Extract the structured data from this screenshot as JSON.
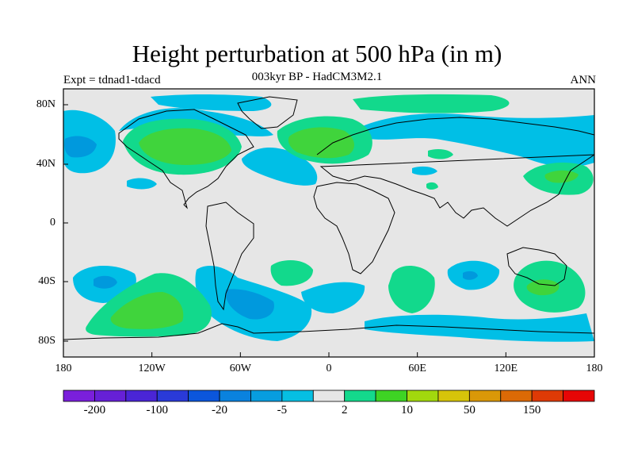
{
  "title": "Height perturbation at 500 hPa (in m)",
  "subtitle": "003kyr BP - HadCM3M2.1",
  "expt_label": "Expt = tdnad1-tdacd",
  "season_label": "ANN",
  "x_ticks": [
    "180",
    "120W",
    "60W",
    "0",
    "60E",
    "120E",
    "180"
  ],
  "y_ticks": [
    "80N",
    "40N",
    "0",
    "40S",
    "80S"
  ],
  "colors": {
    "background_land_ocean": "#e6e6e6",
    "light_blue": "#00bfe6",
    "mid_blue": "#0099dd",
    "light_green": "#12d98c",
    "green": "#40d43c"
  },
  "colorbar": {
    "colors": [
      "#7a1fdb",
      "#6620d6",
      "#4a25d6",
      "#2a3ad8",
      "#0b56dc",
      "#0a82de",
      "#079ddf",
      "#06bfe2",
      "#e6e6e6",
      "#14d98c",
      "#3ed324",
      "#a2d80e",
      "#d6c40a",
      "#da9808",
      "#dc6a06",
      "#de3a06",
      "#e60606"
    ],
    "labels": [
      {
        "text": "-200",
        "index": 1
      },
      {
        "text": "-100",
        "index": 3
      },
      {
        "text": "-20",
        "index": 5
      },
      {
        "text": "-5",
        "index": 7
      },
      {
        "text": "2",
        "index": 9
      },
      {
        "text": "10",
        "index": 11
      },
      {
        "text": "50",
        "index": 13
      },
      {
        "text": "150",
        "index": 15
      }
    ]
  }
}
